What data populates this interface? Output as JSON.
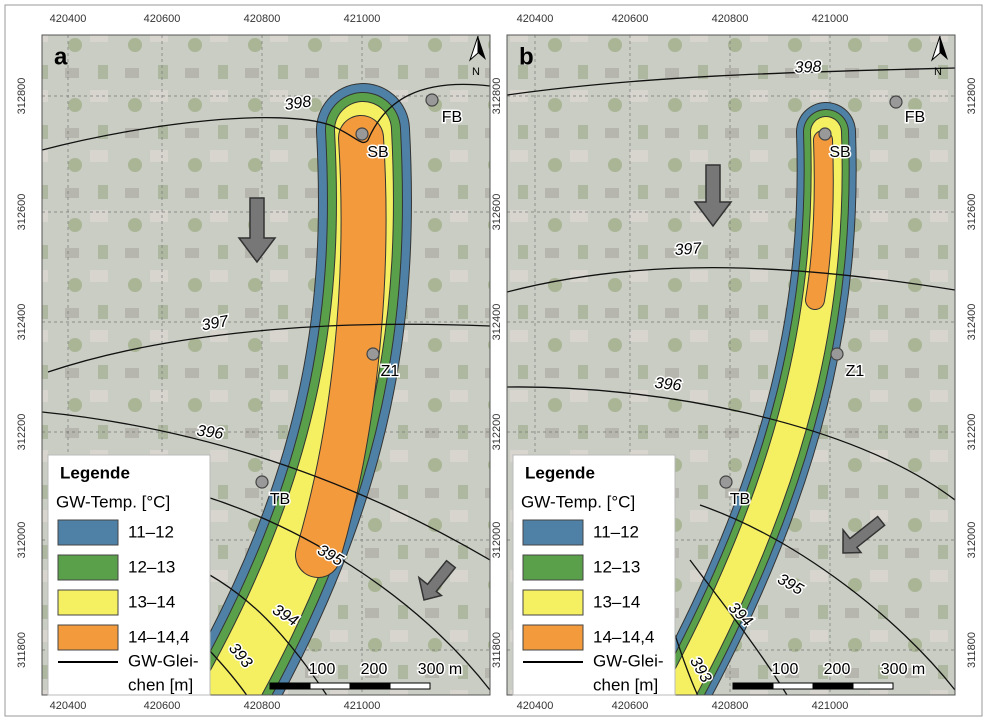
{
  "panels": [
    {
      "label": "a",
      "x_ticks_top": [
        420400,
        420600,
        420800,
        421000
      ],
      "x_ticks_bottom": [
        420400,
        420600,
        420800,
        421000
      ],
      "y_ticks_left": [
        312800,
        312600,
        312400,
        312200,
        312000,
        311800
      ],
      "y_ticks_right": [
        312800,
        312600,
        312400,
        312200,
        312000,
        311800
      ],
      "isolines": [
        398,
        397,
        396,
        395,
        394,
        393
      ],
      "points": [
        "SB",
        "FB",
        "Z1",
        "TB"
      ],
      "north": "N",
      "scale_labels": [
        "100",
        "200",
        "300 m"
      ],
      "legend": {
        "title": "Legende",
        "subtitle": "GW-Temp. [°C]",
        "classes": [
          {
            "label": "11–12",
            "color": "#4f81a6"
          },
          {
            "label": "12–13",
            "color": "#5aa04a"
          },
          {
            "label": "13–14",
            "color": "#f4f062"
          },
          {
            "label": "14–14,4",
            "color": "#f29a3c"
          }
        ],
        "line_label": [
          "GW-Glei-",
          "chen [m]"
        ]
      }
    },
    {
      "label": "b",
      "x_ticks_top": [
        420400,
        420600,
        420800,
        421000
      ],
      "x_ticks_bottom": [
        420400,
        420600,
        420800,
        421000
      ],
      "y_ticks_right": [
        312800,
        312600,
        312400,
        312200,
        312000,
        311800
      ],
      "isolines": [
        398,
        397,
        396,
        395,
        394,
        393
      ],
      "points": [
        "SB",
        "FB",
        "Z1",
        "TB"
      ],
      "north": "N",
      "scale_labels": [
        "100",
        "200",
        "300 m"
      ],
      "legend": {
        "title": "Legende",
        "subtitle": "GW-Temp. [°C]",
        "classes": [
          {
            "label": "11–12",
            "color": "#4f81a6"
          },
          {
            "label": "12–13",
            "color": "#5aa04a"
          },
          {
            "label": "13–14",
            "color": "#f4f062"
          },
          {
            "label": "14–14,4",
            "color": "#f29a3c"
          }
        ],
        "line_label": [
          "GW-Glei-",
          "chen [m]"
        ]
      }
    }
  ]
}
